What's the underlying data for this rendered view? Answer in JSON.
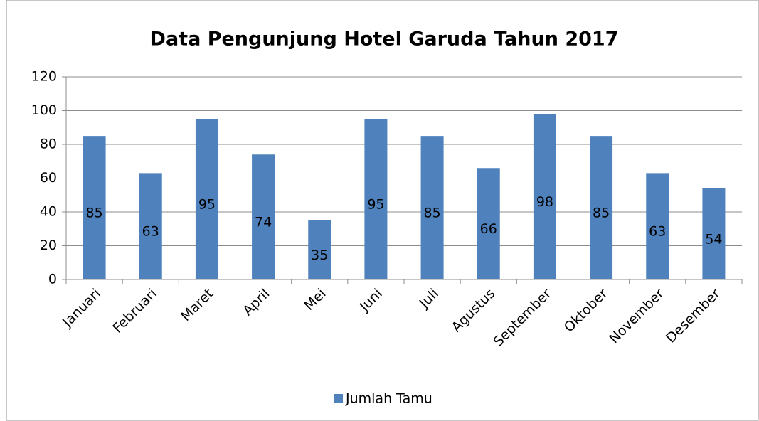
{
  "chart_data": {
    "type": "bar",
    "title": "Data Pengunjung Hotel Garuda Tahun 2017",
    "categories": [
      "Januari",
      "Februari",
      "Maret",
      "April",
      "Mei",
      "Juni",
      "Juli",
      "Agustus",
      "September",
      "Oktober",
      "November",
      "Desember"
    ],
    "series": [
      {
        "name": "Jumlah Tamu",
        "color": "#4f81bd",
        "values": [
          85,
          63,
          95,
          74,
          35,
          95,
          85,
          66,
          98,
          85,
          63,
          54
        ]
      }
    ],
    "ylim": [
      0,
      120
    ],
    "yticks": [
      0,
      20,
      40,
      60,
      80,
      100,
      120
    ],
    "grid": true,
    "legend": "bottom"
  }
}
